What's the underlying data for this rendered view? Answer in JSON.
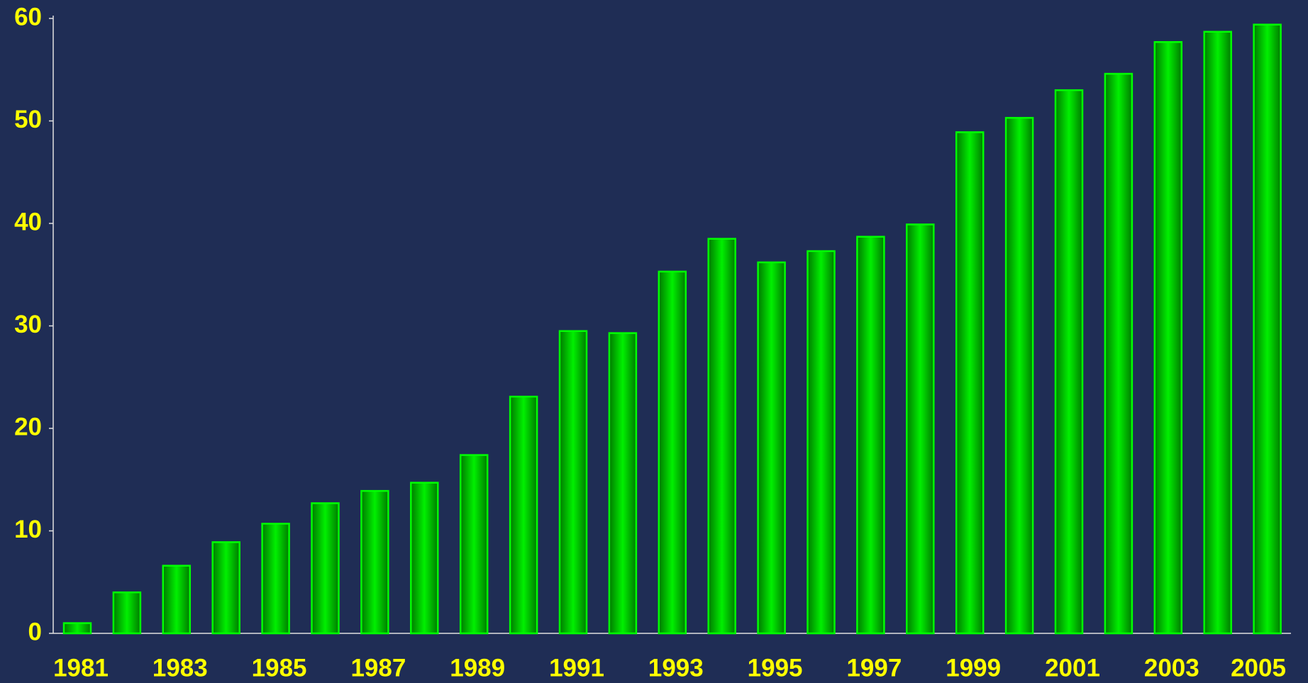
{
  "chart_data": {
    "type": "bar",
    "categories": [
      "1981",
      null,
      "1983",
      null,
      "1985",
      null,
      "1987",
      null,
      "1989",
      null,
      "1991",
      null,
      "1993",
      null,
      "1995",
      null,
      "1997",
      null,
      "1999",
      null,
      "2001",
      null,
      "2003",
      null,
      "2005"
    ],
    "values": [
      1,
      4,
      6.6,
      8.9,
      10.7,
      12.7,
      13.9,
      14.7,
      17.4,
      23.1,
      29.5,
      29.3,
      35.3,
      38.5,
      36.2,
      37.3,
      38.7,
      39.9,
      48.9,
      50.3,
      53.0,
      54.6,
      57.7,
      58.7,
      59.4
    ],
    "color": "#00ff00",
    "ylim": [
      0,
      60
    ],
    "yticks": [
      0,
      10,
      20,
      30,
      40,
      50,
      60
    ],
    "grid": false
  }
}
